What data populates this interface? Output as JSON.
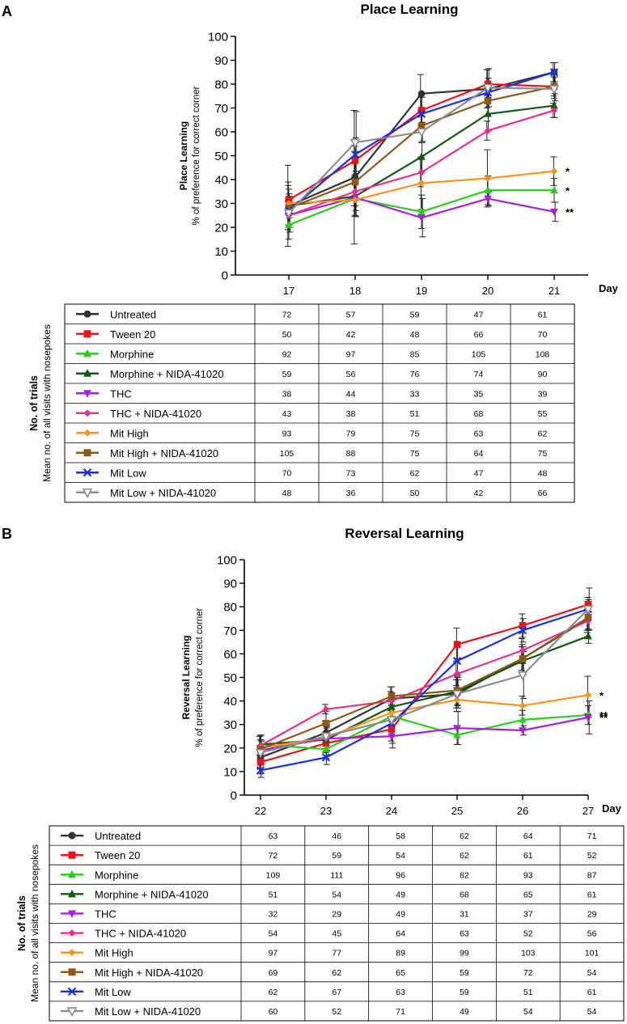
{
  "colors": {
    "Untreated": "#333333",
    "Tween 20": "#e8141b",
    "Morphine": "#2ecc1e",
    "Morphine + NIDA-41020": "#0e5a14",
    "THC": "#a51fe0",
    "THC + NIDA-41020": "#e8308a",
    "Mit High": "#f7931e",
    "Mit High + NIDA-41020": "#8b5a1b",
    "Mit Low": "#1a2ee8",
    "Mit Low + NIDA-41020": "#8c8c8c"
  },
  "markers": {
    "Untreated": "circle",
    "Tween 20": "square",
    "Morphine": "triangle-up",
    "Morphine + NIDA-41020": "triangle-up",
    "THC": "triangle-down",
    "THC + NIDA-41020": "diamond",
    "Mit High": "diamond",
    "Mit High + NIDA-41020": "square",
    "Mit Low": "x",
    "Mit Low + NIDA-41020": "triangle-down-open"
  },
  "chart_data": [
    {
      "type": "line",
      "panel_label": "A",
      "title": "Place Learning",
      "ylabel_main": "Place Learning",
      "ylabel_sub": "% of preference for correct corner",
      "xlabel": "Day",
      "x": [
        17,
        18,
        19,
        20,
        21
      ],
      "ylim": [
        0,
        100
      ],
      "yticks": [
        0,
        10,
        20,
        30,
        40,
        50,
        60,
        70,
        80,
        90,
        100
      ],
      "series": [
        {
          "name": "Untreated",
          "values": [
            29,
            41,
            76,
            78,
            85
          ],
          "err": [
            17,
            28,
            8,
            8,
            4
          ]
        },
        {
          "name": "Tween 20",
          "values": [
            31.5,
            48,
            69,
            80,
            79
          ],
          "err": [
            6,
            6,
            6,
            6,
            4
          ]
        },
        {
          "name": "Morphine",
          "values": [
            21,
            32,
            26.5,
            35.5,
            35.5
          ],
          "err": [
            6,
            7,
            7,
            6,
            5
          ]
        },
        {
          "name": "Morphine + NIDA-41020",
          "values": [
            29,
            33,
            49.5,
            67.5,
            71
          ],
          "err": [
            5,
            6,
            6,
            7,
            5
          ]
        },
        {
          "name": "THC",
          "values": [
            25,
            32.5,
            24,
            32,
            26.5
          ],
          "err": [
            7,
            8,
            8,
            3,
            4
          ]
        },
        {
          "name": "THC + NIDA-41020",
          "values": [
            25,
            35,
            43,
            60.5,
            69
          ],
          "err": [
            6,
            6,
            6,
            4,
            3
          ]
        },
        {
          "name": "Mit High",
          "values": [
            30,
            31.5,
            38.5,
            40.5,
            43.5
          ],
          "err": [
            9,
            7,
            11,
            12,
            6
          ]
        },
        {
          "name": "Mit High + NIDA-41020",
          "values": [
            28,
            39,
            62.5,
            73,
            79
          ],
          "err": [
            8,
            10,
            7,
            6,
            5
          ]
        },
        {
          "name": "Mit Low",
          "values": [
            27,
            50.5,
            67.5,
            76.5,
            85
          ],
          "err": [
            6,
            7,
            7,
            6,
            4
          ]
        },
        {
          "name": "Mit Low + NIDA-41020",
          "values": [
            26,
            55.5,
            60,
            78.5,
            78
          ],
          "err": [
            6,
            13,
            4,
            8,
            5
          ]
        }
      ],
      "significance": [
        {
          "series": "Mit High",
          "label": "*"
        },
        {
          "series": "Morphine",
          "label": "*"
        },
        {
          "series": "THC",
          "label": "**"
        }
      ],
      "table": {
        "title": "No. of trials",
        "subtitle": "Mean no. of all visits with nosepokes",
        "rows": [
          {
            "name": "Untreated",
            "label": "Untreated",
            "values": [
              "72",
              "57",
              "59",
              "47",
              "61"
            ]
          },
          {
            "name": "Tween 20",
            "label": "Tween 20",
            "values": [
              "50",
              "42",
              "48",
              "66",
              "70"
            ]
          },
          {
            "name": "Morphine",
            "label": "Morphine",
            "values": [
              "92",
              "97",
              "85",
              "105",
              "108"
            ]
          },
          {
            "name": "Morphine + NIDA-41020",
            "label": "Morphine + NIDA-41020",
            "values": [
              "59",
              "56",
              "76",
              "74",
              "90"
            ]
          },
          {
            "name": "THC",
            "label": "THC",
            "values": [
              "38",
              "44",
              "33",
              "35",
              "39"
            ]
          },
          {
            "name": "THC + NIDA-41020",
            "label": "THC + NIDA-41020",
            "values": [
              "43",
              "38",
              "51",
              "68",
              "55"
            ]
          },
          {
            "name": "Mit High",
            "label": "Mit High",
            "values": [
              "93",
              "79",
              "75",
              "63",
              "62"
            ]
          },
          {
            "name": "Mit High + NIDA-41020",
            "label": "Mit High + NIDA-41020",
            "values": [
              "105",
              "88",
              "75",
              "64",
              "75"
            ]
          },
          {
            "name": "Mit Low",
            "label": "Mit Low",
            "values": [
              "70",
              "73",
              "62",
              "47",
              "48"
            ]
          },
          {
            "name": "Mit Low + NIDA-41020",
            "label": "Mit Low + NIDA-41020",
            "values": [
              "48",
              "36",
              "50",
              "42",
              "66"
            ]
          }
        ]
      }
    },
    {
      "type": "line",
      "panel_label": "B",
      "title": "Reversal Learning",
      "ylabel_main": "Reversal Learning",
      "ylabel_sub": "% of preference for correct corner",
      "xlabel": "Day",
      "x": [
        22,
        23,
        24,
        25,
        26,
        27
      ],
      "ylim": [
        0,
        100
      ],
      "yticks": [
        0,
        10,
        20,
        30,
        40,
        50,
        60,
        70,
        80,
        90,
        100
      ],
      "series": [
        {
          "name": "Untreated",
          "values": [
            16,
            26.5,
            41,
            43,
            58,
            75
          ],
          "err": [
            5,
            5,
            5,
            6,
            5,
            5
          ]
        },
        {
          "name": "Tween 20",
          "values": [
            14,
            22,
            28,
            64,
            72,
            81
          ],
          "err": [
            5,
            4,
            5,
            7,
            5,
            3
          ]
        },
        {
          "name": "Morphine",
          "values": [
            21.5,
            19.5,
            33.5,
            25.5,
            32,
            34
          ],
          "err": [
            4,
            4,
            5,
            4,
            4,
            4
          ]
        },
        {
          "name": "Morphine + NIDA-41020",
          "values": [
            21.5,
            23.5,
            37.5,
            44,
            57,
            67.5
          ],
          "err": [
            4,
            5,
            6,
            6,
            6,
            3
          ]
        },
        {
          "name": "THC",
          "values": [
            19,
            24,
            25,
            28.5,
            27.5,
            33
          ],
          "err": [
            4,
            5,
            5,
            7,
            2,
            7
          ]
        },
        {
          "name": "THC + NIDA-41020",
          "values": [
            21,
            36.5,
            40,
            51.5,
            61.5,
            74
          ],
          "err": [
            4,
            2,
            4,
            5,
            5,
            5
          ]
        },
        {
          "name": "Mit High",
          "values": [
            20,
            24.5,
            35,
            40.5,
            38,
            42.5
          ],
          "err": [
            5,
            6,
            8,
            5,
            4,
            8
          ]
        },
        {
          "name": "Mit High + NIDA-41020",
          "values": [
            19.5,
            30.5,
            42,
            44.5,
            58,
            75.5
          ],
          "err": [
            4,
            5,
            4,
            6,
            6,
            5
          ]
        },
        {
          "name": "Mit Low",
          "values": [
            10.5,
            16,
            30.5,
            57,
            70,
            79
          ],
          "err": [
            3,
            3,
            5,
            6,
            5,
            4
          ]
        },
        {
          "name": "Mit Low + NIDA-41020",
          "values": [
            18,
            25,
            32,
            43,
            51,
            79
          ],
          "err": [
            5,
            5,
            10,
            6,
            10,
            9
          ]
        }
      ],
      "significance": [
        {
          "series": "Mit High",
          "label": "*"
        },
        {
          "series": "Morphine",
          "label": "**"
        },
        {
          "series": "THC",
          "label": "**"
        }
      ],
      "table": {
        "title": "No. of trials",
        "subtitle": "Mean no. of all visits with nosepokes",
        "rows": [
          {
            "name": "Untreated",
            "label": "Untreated",
            "values": [
              "63",
              "46",
              "58",
              "62",
              "64",
              "71"
            ]
          },
          {
            "name": "Tween 20",
            "label": "Tween 20",
            "values": [
              "72",
              "59",
              "54",
              "62",
              "61",
              "52"
            ]
          },
          {
            "name": "Morphine",
            "label": "Morphine",
            "values": [
              "109",
              "111",
              "96",
              "82",
              "93",
              "87"
            ]
          },
          {
            "name": "Morphine + NIDA-41020",
            "label": "Morphine + NIDA-41020",
            "values": [
              "51",
              "54",
              "49",
              "68",
              "65",
              "61"
            ]
          },
          {
            "name": "THC",
            "label": "THC",
            "values": [
              "32",
              "29",
              "49",
              "31",
              "37",
              "29"
            ]
          },
          {
            "name": "THC + NIDA-41020",
            "label": "THC + NIDA-41020",
            "values": [
              "54",
              "45",
              "64",
              "63",
              "52",
              "56"
            ]
          },
          {
            "name": "Mit High",
            "label": "Mit High",
            "values": [
              "97",
              "77",
              "89",
              "99",
              "103",
              "101"
            ]
          },
          {
            "name": "Mit High + NIDA-41020",
            "label": "Mit High + NIDA-41020",
            "values": [
              "69",
              "62",
              "65",
              "59",
              "72",
              "54"
            ]
          },
          {
            "name": "Mit Low",
            "label": "Mit Low",
            "values": [
              "62",
              "67",
              "63",
              "59",
              "51",
              "61"
            ]
          },
          {
            "name": "Mit Low + NIDA-41020",
            "label": "Mit Low + NIDA-41020",
            "values": [
              "60",
              "52",
              "71",
              "49",
              "54",
              "54"
            ]
          }
        ]
      }
    }
  ]
}
